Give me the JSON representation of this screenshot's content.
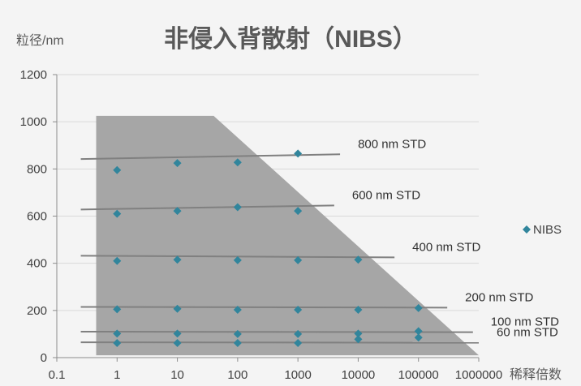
{
  "chart_data": {
    "type": "scatter",
    "title": "非侵入背散射（NIBS）",
    "ylabel": "粒径/nm",
    "xlabel": "稀释倍数",
    "x_scale": "log",
    "xlim": [
      0.1,
      1000000
    ],
    "ylim": [
      0,
      1200
    ],
    "x_ticks": [
      0.1,
      1,
      10,
      100,
      1000,
      10000,
      100000,
      1000000
    ],
    "x_tick_labels": [
      "0.1",
      "1",
      "10",
      "100",
      "1000",
      "10000",
      "100000",
      "1000000"
    ],
    "y_ticks": [
      0,
      200,
      400,
      600,
      800,
      1000,
      1200
    ],
    "y_tick_labels": [
      "0",
      "200",
      "400",
      "600",
      "800",
      "1000",
      "1200"
    ],
    "grid": "horizontal",
    "legend_position": "right",
    "series": [
      {
        "name": "NIBS",
        "color": "#31859c",
        "marker": "diamond",
        "points": [
          [
            1,
            795
          ],
          [
            10,
            825
          ],
          [
            100,
            828
          ],
          [
            1000,
            865
          ],
          [
            1,
            610
          ],
          [
            10,
            622
          ],
          [
            100,
            638
          ],
          [
            1000,
            622
          ],
          [
            1,
            410
          ],
          [
            10,
            415
          ],
          [
            100,
            413
          ],
          [
            1000,
            413
          ],
          [
            10000,
            415
          ],
          [
            1,
            205
          ],
          [
            10,
            207
          ],
          [
            100,
            203
          ],
          [
            1000,
            203
          ],
          [
            10000,
            203
          ],
          [
            100000,
            210
          ],
          [
            1,
            102
          ],
          [
            10,
            102
          ],
          [
            100,
            100
          ],
          [
            1000,
            100
          ],
          [
            10000,
            102
          ],
          [
            100000,
            112
          ],
          [
            1,
            62
          ],
          [
            10,
            62
          ],
          [
            100,
            62
          ],
          [
            1000,
            62
          ],
          [
            10000,
            78
          ],
          [
            100000,
            85
          ]
        ]
      }
    ],
    "reference_lines": [
      {
        "label": "800 nm STD",
        "x_range": [
          0.25,
          5000
        ],
        "y": [
          842,
          862
        ]
      },
      {
        "label": "600 nm STD",
        "x_range": [
          0.25,
          4000
        ],
        "y": [
          628,
          645
        ]
      },
      {
        "label": "400 nm STD",
        "x_range": [
          0.25,
          40000
        ],
        "y": [
          432,
          425
        ]
      },
      {
        "label": "200 nm STD",
        "x_range": [
          0.25,
          300000
        ],
        "y": [
          215,
          212
        ]
      },
      {
        "label": "100 nm STD",
        "x_range": [
          0.25,
          800000
        ],
        "y": [
          110,
          108
        ]
      },
      {
        "label": "60 nm STD",
        "x_range": [
          0.25,
          1000000
        ],
        "y": [
          65,
          63
        ]
      }
    ],
    "shaded_region": {
      "color": "#a6a6a6",
      "polygon": [
        [
          0.45,
          10
        ],
        [
          0.45,
          1025
        ],
        [
          40,
          1025
        ],
        [
          1000000,
          10
        ]
      ]
    }
  }
}
